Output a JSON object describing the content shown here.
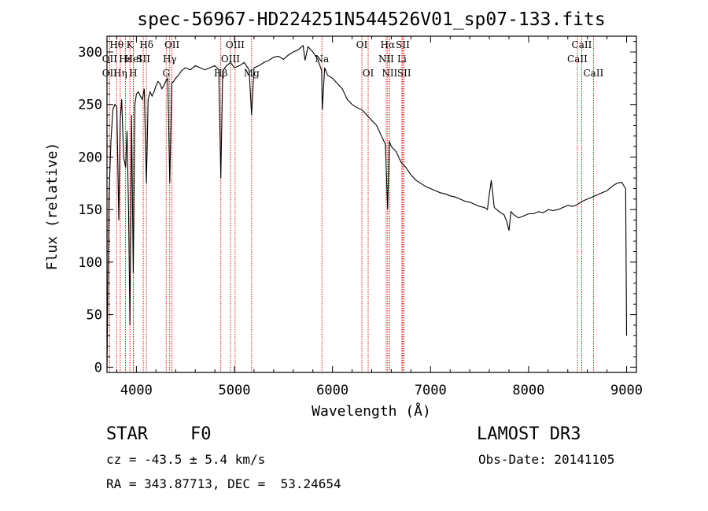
{
  "chart_data": {
    "type": "line",
    "title": "spec-56967-HD224251N544526V01_sp07-133.fits",
    "xlabel": "Wavelength (Å)",
    "ylabel": "Flux (relative)",
    "xlim": [
      3700,
      9100
    ],
    "ylim": [
      -5,
      315
    ],
    "xticks": [
      4000,
      5000,
      6000,
      7000,
      8000,
      9000
    ],
    "yticks": [
      0,
      50,
      100,
      150,
      200,
      250,
      300
    ],
    "grid": false,
    "series": [
      {
        "x": [
          3700,
          3720,
          3740,
          3760,
          3780,
          3800,
          3820,
          3835,
          3850,
          3870,
          3890,
          3905,
          3920,
          3934,
          3950,
          3968,
          3985,
          4000,
          4020,
          4040,
          4060,
          4080,
          4102,
          4120,
          4140,
          4160,
          4180,
          4200,
          4220,
          4240,
          4260,
          4280,
          4300,
          4320,
          4340,
          4360,
          4380,
          4400,
          4430,
          4460,
          4500,
          4550,
          4600,
          4650,
          4700,
          4750,
          4800,
          4840,
          4861,
          4880,
          4920,
          4960,
          5000,
          5050,
          5100,
          5150,
          5175,
          5200,
          5250,
          5300,
          5350,
          5400,
          5450,
          5500,
          5550,
          5600,
          5650,
          5700,
          5720,
          5750,
          5800,
          5850,
          5890,
          5896,
          5920,
          5950,
          6000,
          6050,
          6100,
          6150,
          6200,
          6250,
          6300,
          6350,
          6400,
          6450,
          6500,
          6540,
          6563,
          6580,
          6600,
          6650,
          6700,
          6750,
          6800,
          6850,
          6900,
          6950,
          7000,
          7050,
          7100,
          7150,
          7200,
          7250,
          7300,
          7350,
          7400,
          7450,
          7500,
          7550,
          7580,
          7600,
          7620,
          7650,
          7700,
          7750,
          7780,
          7800,
          7820,
          7850,
          7900,
          7950,
          8000,
          8050,
          8100,
          8150,
          8200,
          8250,
          8300,
          8350,
          8400,
          8450,
          8500,
          8550,
          8600,
          8650,
          8700,
          8750,
          8800,
          8850,
          8900,
          8950,
          8990,
          9000
        ],
        "y": [
          0,
          160,
          215,
          245,
          250,
          248,
          140,
          235,
          255,
          200,
          190,
          225,
          150,
          40,
          240,
          90,
          250,
          260,
          262,
          258,
          255,
          265,
          175,
          255,
          262,
          258,
          262,
          268,
          272,
          270,
          265,
          268,
          272,
          275,
          175,
          270,
          272,
          275,
          278,
          282,
          285,
          283,
          287,
          285,
          283,
          285,
          287,
          283,
          180,
          282,
          287,
          290,
          285,
          287,
          290,
          283,
          240,
          285,
          287,
          290,
          292,
          295,
          296,
          293,
          297,
          300,
          302,
          306,
          292,
          305,
          300,
          293,
          282,
          245,
          285,
          278,
          275,
          270,
          265,
          255,
          250,
          247,
          245,
          240,
          235,
          230,
          220,
          212,
          150,
          215,
          210,
          205,
          195,
          190,
          183,
          178,
          175,
          172,
          170,
          168,
          166,
          165,
          163,
          162,
          160,
          158,
          157,
          155,
          153,
          152,
          150,
          165,
          178,
          152,
          148,
          145,
          138,
          130,
          148,
          145,
          142,
          144,
          146,
          146,
          148,
          147,
          150,
          149,
          150,
          152,
          154,
          153,
          155,
          158,
          160,
          162,
          164,
          166,
          168,
          172,
          175,
          176,
          170,
          30
        ]
      }
    ],
    "spectral_lines": [
      {
        "label": "Hβ",
        "x": 4861
      },
      {
        "label": "Hδ",
        "x": 4102
      },
      {
        "label": "Hγ",
        "x": 4340
      },
      {
        "label": "Hα",
        "x": 6563
      }
    ]
  },
  "line_labels": [
    {
      "text": "Hθ",
      "x": 3798,
      "row": 0
    },
    {
      "text": "K",
      "x": 3934,
      "row": 0
    },
    {
      "text": "Hδ",
      "x": 4102,
      "row": 0
    },
    {
      "text": "OII",
      "x": 4363,
      "row": 0
    },
    {
      "text": "OIII",
      "x": 5007,
      "row": 0
    },
    {
      "text": "OI",
      "x": 6300,
      "row": 0
    },
    {
      "text": "Hα",
      "x": 6563,
      "row": 0
    },
    {
      "text": "SII",
      "x": 6717,
      "row": 0
    },
    {
      "text": "CaII",
      "x": 8542,
      "row": 0
    },
    {
      "text": "OII",
      "x": 3727,
      "row": 1
    },
    {
      "text": "Hε",
      "x": 3889,
      "row": 1
    },
    {
      "text": "HeI",
      "x": 3970,
      "row": 1
    },
    {
      "text": "SII",
      "x": 4070,
      "row": 1
    },
    {
      "text": "Hγ",
      "x": 4340,
      "row": 1
    },
    {
      "text": "OIII",
      "x": 4959,
      "row": 1
    },
    {
      "text": "Na",
      "x": 5893,
      "row": 1
    },
    {
      "text": "NII",
      "x": 6548,
      "row": 1
    },
    {
      "text": "Li",
      "x": 6708,
      "row": 1
    },
    {
      "text": "CaII",
      "x": 8498,
      "row": 1
    },
    {
      "text": "OII",
      "x": 3727,
      "row": 2
    },
    {
      "text": "Hη",
      "x": 3835,
      "row": 2
    },
    {
      "text": "H",
      "x": 3968,
      "row": 2
    },
    {
      "text": "G",
      "x": 4304,
      "row": 2
    },
    {
      "text": "Hβ",
      "x": 4861,
      "row": 2
    },
    {
      "text": "Mg",
      "x": 5175,
      "row": 2
    },
    {
      "text": "OI",
      "x": 6364,
      "row": 2
    },
    {
      "text": "NII",
      "x": 6583,
      "row": 2
    },
    {
      "text": "SII",
      "x": 6731,
      "row": 2
    },
    {
      "text": "CaII",
      "x": 8662,
      "row": 2
    }
  ],
  "red_lines_x": [
    3727,
    3798,
    3835,
    3889,
    3934,
    3968,
    3970,
    4070,
    4102,
    4304,
    4340,
    4363,
    4861,
    4959,
    5007,
    5175,
    5893,
    6300,
    6364,
    6548,
    6563,
    6583,
    6708,
    6717,
    6731,
    8498,
    8542,
    8662
  ],
  "info": {
    "object_type": "STAR",
    "subclass": "F0",
    "survey": "LAMOST DR3",
    "cz": "cz = -43.5 ± 5.4 km/s",
    "obs_date": "Obs-Date: 20141105",
    "coords": "RA = 343.87713, DEC =  53.24654"
  }
}
